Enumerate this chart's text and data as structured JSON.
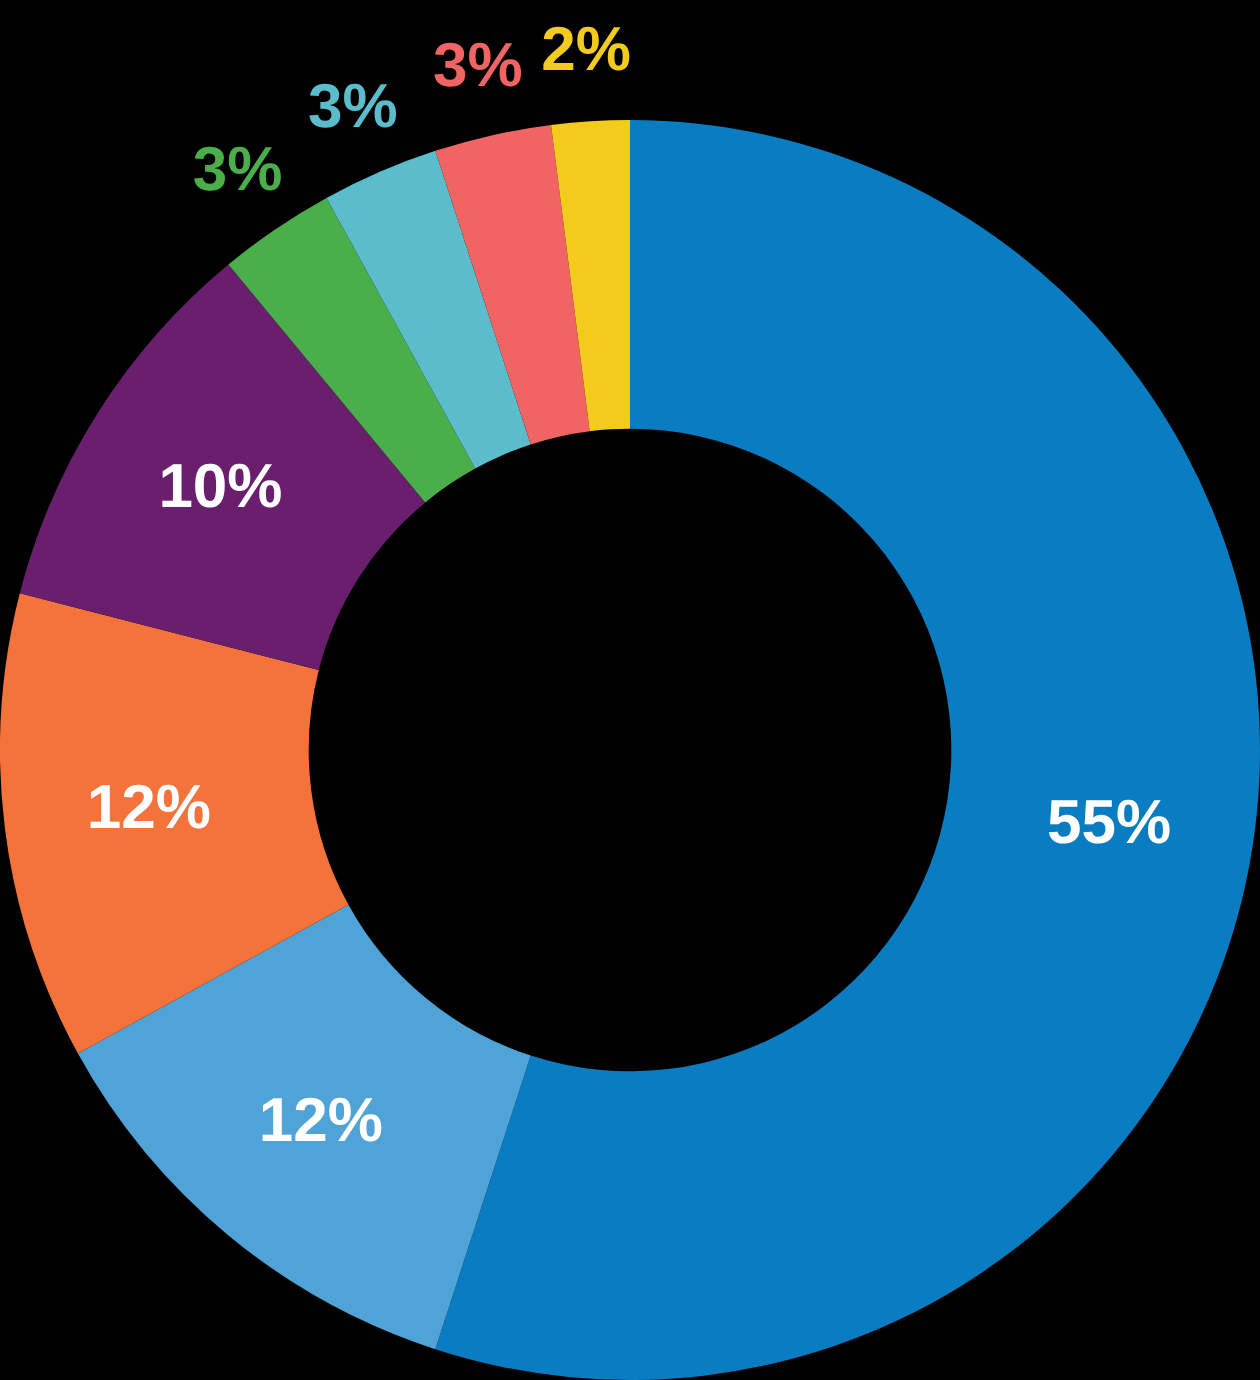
{
  "chart_data": {
    "type": "donut",
    "categories": [
      null,
      null,
      null,
      null,
      null,
      null,
      null,
      null
    ],
    "values": [
      55,
      12,
      12,
      10,
      3,
      3,
      3,
      2
    ],
    "colors": [
      "#0a7cc1",
      "#4fa3d6",
      "#f4733a",
      "#6a1f6e",
      "#4aaf4a",
      "#5bbccc",
      "#f06563",
      "#f3cb1c"
    ],
    "value_labels": [
      "55%",
      "12%",
      "12%",
      "10%",
      "3%",
      "3%",
      "3%",
      "2%"
    ],
    "legend": false
  }
}
